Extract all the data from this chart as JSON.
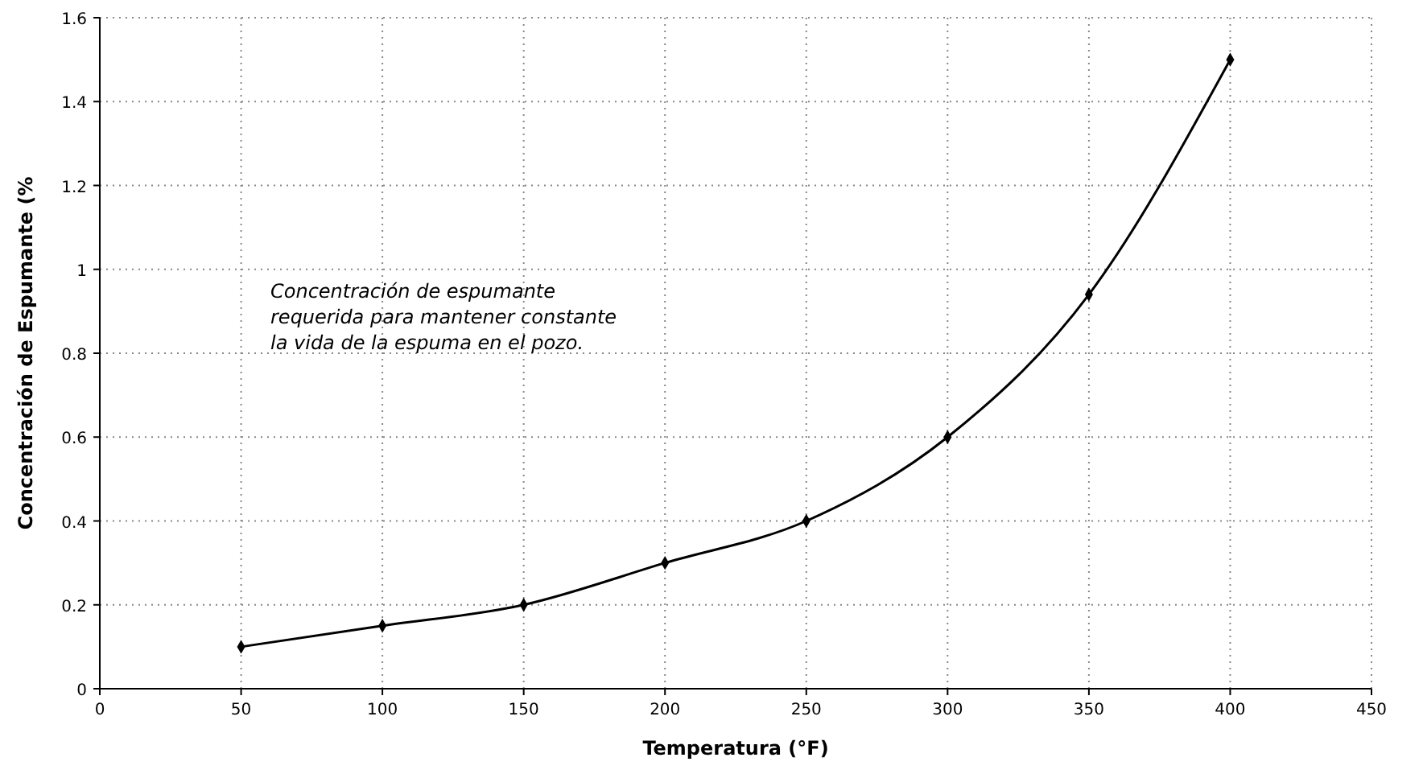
{
  "chart_data": {
    "type": "line",
    "xlabel": "Temperatura (°F)",
    "ylabel": "Concentración de Espumante (%",
    "x": [
      50,
      100,
      150,
      200,
      250,
      300,
      350,
      400
    ],
    "series": [
      {
        "color": "#000000",
        "values": [
          0.1,
          0.15,
          0.2,
          0.3,
          0.4,
          0.6,
          0.94,
          1.5
        ]
      }
    ],
    "xlim": [
      0,
      450
    ],
    "xticks": [
      0,
      50,
      100,
      150,
      200,
      250,
      300,
      350,
      400,
      450
    ],
    "ylim": [
      0,
      1.6
    ],
    "yticks": [
      0,
      0.2,
      0.4,
      0.6,
      0.8,
      1,
      1.2,
      1.4,
      1.6
    ],
    "grid": true,
    "marker": "diamond",
    "line_style": "solid",
    "annotations": [
      "Concentración de espumante\nrequerida para mantener constante\nla vida de la espuma en el pozo."
    ]
  }
}
